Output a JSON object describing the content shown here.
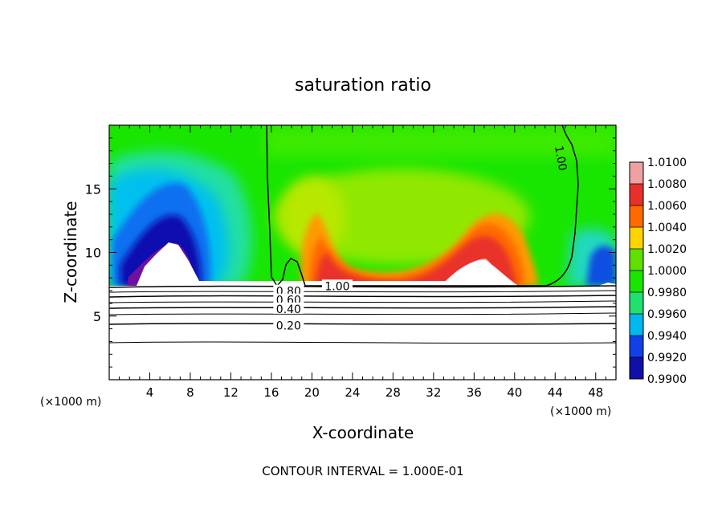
{
  "chart_data": {
    "type": "heatmap",
    "title": "saturation ratio",
    "xlabel": "X-coordinate",
    "ylabel": "Z-coordinate",
    "x_unit_left": "(×1000 m)",
    "x_unit_right": "(×1000 m)",
    "xlim": [
      0,
      50
    ],
    "ylim": [
      0,
      20
    ],
    "x_ticks": [
      "4",
      "8",
      "12",
      "16",
      "20",
      "24",
      "28",
      "32",
      "36",
      "40",
      "44",
      "48"
    ],
    "x_tick_values": [
      4,
      8,
      12,
      16,
      20,
      24,
      28,
      32,
      36,
      40,
      44,
      48
    ],
    "y_ticks": [
      "5",
      "10",
      "15"
    ],
    "y_tick_values": [
      5,
      10,
      15
    ],
    "footer": "CONTOUR INTERVAL = 1.000E-01",
    "colorbar": {
      "labels": [
        "1.0100",
        "1.0080",
        "1.0060",
        "1.0040",
        "1.0020",
        "1.0000",
        "0.9980",
        "0.9960",
        "0.9940",
        "0.9920",
        "0.9900"
      ],
      "values": [
        1.01,
        1.008,
        1.006,
        1.004,
        1.002,
        1.0,
        0.998,
        0.996,
        0.994,
        0.992,
        0.99
      ],
      "colors": [
        "#f0a0a0",
        "#e8302a",
        "#ff6a00",
        "#ffd400",
        "#60e000",
        "#18e600",
        "#20e070",
        "#00b8f0",
        "#1040e8",
        "#1010a8",
        "#7010a0"
      ]
    },
    "contour_labels": [
      {
        "text": "1.00",
        "x": 22.5,
        "z": 7.3
      },
      {
        "text": "1.00",
        "x": 44.5,
        "z": 17.4
      },
      {
        "text": "0.80",
        "x": 17.7,
        "z": 6.9
      },
      {
        "text": "0.60",
        "x": 17.7,
        "z": 6.2
      },
      {
        "text": "0.40",
        "x": 17.7,
        "z": 5.5
      },
      {
        "text": "0.20",
        "x": 17.7,
        "z": 4.2
      }
    ],
    "colors": {
      "cloud_base": "#18e600",
      "dry_region": "#00b8f0",
      "supersaturated": "#e8302a",
      "masked": "#ffffff"
    }
  }
}
